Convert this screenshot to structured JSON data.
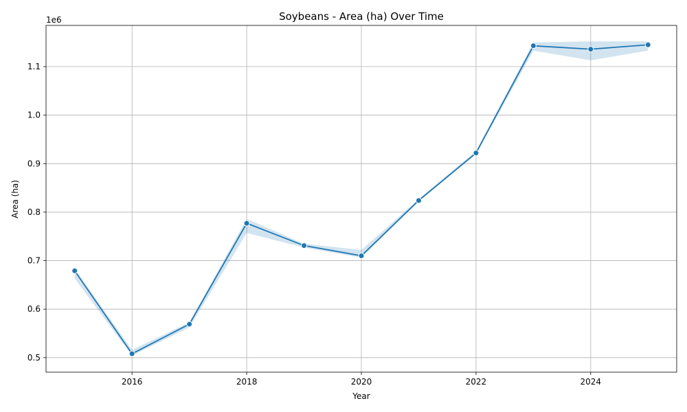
{
  "chart_data": {
    "type": "line",
    "title": "Soybeans - Area (ha) Over Time",
    "xlabel": "Year",
    "ylabel": "Area (ha)",
    "y_offset_label": "1e6",
    "x_ticks": [
      2016,
      2018,
      2020,
      2022,
      2024
    ],
    "y_ticks": [
      0.5,
      0.6,
      0.7,
      0.8,
      0.9,
      1.0,
      1.1
    ],
    "y_tick_labels": [
      "0.5",
      "0.6",
      "0.7",
      "0.8",
      "0.9",
      "1.0",
      "1.1"
    ],
    "xlim": [
      2014.5,
      2025.5
    ],
    "ylim": [
      0.47,
      1.185
    ],
    "grid": true,
    "colors": {
      "line": "#1f77b4",
      "band": "#1f77b4"
    },
    "series": [
      {
        "x": [
          2015,
          2016,
          2017,
          2018,
          2019,
          2020,
          2021,
          2022,
          2023,
          2024,
          2025
        ],
        "values": [
          0.679,
          0.508,
          0.569,
          0.777,
          0.731,
          0.71,
          0.824,
          0.922,
          1.143,
          1.136,
          1.145
        ],
        "lower": [
          0.663,
          0.504,
          0.562,
          0.757,
          0.727,
          0.706,
          0.822,
          0.919,
          1.133,
          1.113,
          1.133
        ],
        "upper": [
          0.683,
          0.516,
          0.573,
          0.786,
          0.735,
          0.722,
          0.827,
          0.926,
          1.15,
          1.152,
          1.152
        ]
      }
    ]
  }
}
